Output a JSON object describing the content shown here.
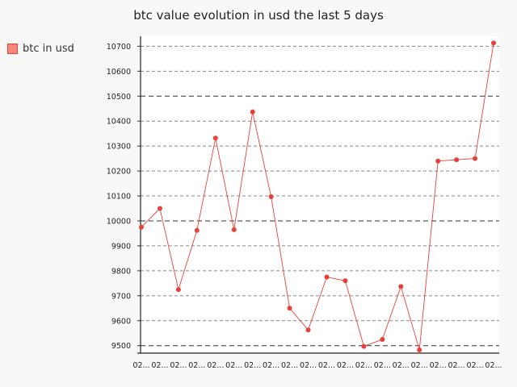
{
  "chart_data": {
    "type": "line",
    "title": "btc value evolution in usd the last 5 days",
    "xlabel": "",
    "ylabel": "",
    "ylim": [
      9470,
      10740
    ],
    "yticks": [
      9500,
      9600,
      9700,
      9800,
      9900,
      10000,
      10100,
      10200,
      10300,
      10400,
      10500,
      10600,
      10700
    ],
    "major_gridlines": [
      9500,
      10000,
      10500
    ],
    "legend_position": "top-left",
    "grid": true,
    "categories": [
      "02...",
      "02...",
      "02...",
      "02...",
      "02...",
      "02...",
      "02...",
      "02...",
      "02...",
      "02...",
      "02...",
      "02...",
      "02...",
      "02...",
      "02...",
      "02...",
      "02...",
      "02...",
      "02...",
      "02..."
    ],
    "series": [
      {
        "name": "btc in usd",
        "color": "#e8403a",
        "values": [
          9975,
          10050,
          9725,
          9962,
          10332,
          9965,
          10437,
          10097,
          9650,
          9563,
          9775,
          9760,
          9497,
          9525,
          9737,
          9483,
          10240,
          10245,
          10250,
          10713
        ]
      }
    ]
  }
}
